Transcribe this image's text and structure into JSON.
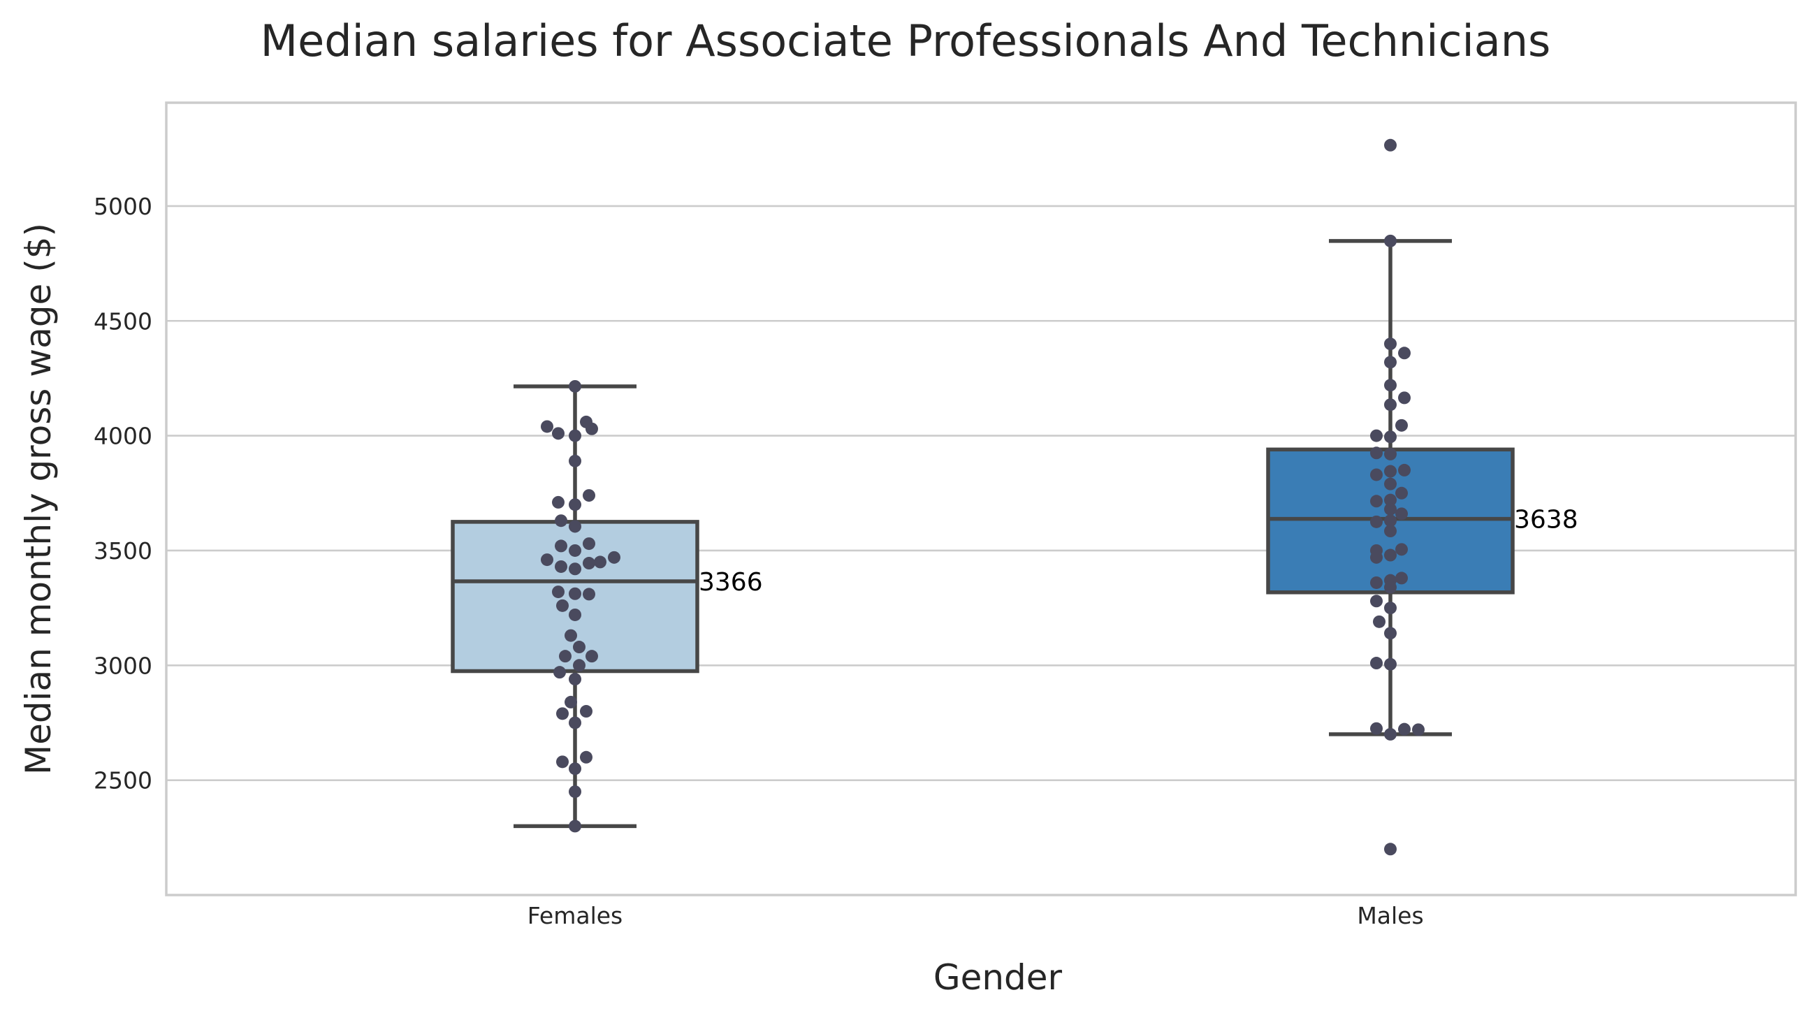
{
  "chart_data": {
    "type": "box",
    "title": "Median salaries for Associate Professionals And Technicians",
    "xlabel": "Gender",
    "ylabel": "Median monthly gross wage ($)",
    "ylim": [
      2000,
      5450
    ],
    "yticks": [
      2500,
      3000,
      3500,
      4000,
      4500,
      5000
    ],
    "grid": "horizontal",
    "colors": {
      "Females": "#b3cde0",
      "Males": "#3a7db5",
      "points": "#4a4a5e",
      "box_edge": "#474747"
    },
    "categories": [
      "Females",
      "Males"
    ],
    "boxes": [
      {
        "name": "Females",
        "whisker_low": 2300,
        "q1": 2975,
        "median": 3366,
        "q3": 3625,
        "whisker_high": 4215,
        "median_label": "3366",
        "outliers": []
      },
      {
        "name": "Males",
        "whisker_low": 2700,
        "q1": 3318,
        "median": 3638,
        "q3": 3940,
        "whisker_high": 4848,
        "median_label": "3638",
        "outliers": [
          5265,
          2200
        ]
      }
    ],
    "points": [
      {
        "category": "Females",
        "values": [
          4215,
          4060,
          4040,
          4030,
          4010,
          4000,
          3890,
          3740,
          3710,
          3700,
          3630,
          3605,
          3530,
          3520,
          3500,
          3470,
          3460,
          3450,
          3445,
          3430,
          3420,
          3320,
          3312,
          3310,
          3260,
          3220,
          3130,
          3080,
          3040,
          3040,
          3000,
          2970,
          2940,
          2840,
          2800,
          2790,
          2750,
          2600,
          2580,
          2550,
          2450,
          2300
        ],
        "offsets": [
          0,
          8,
          -20,
          12,
          -12,
          0,
          0,
          10,
          -12,
          0,
          -10,
          0,
          10,
          -10,
          0,
          28,
          -20,
          18,
          10,
          -10,
          0,
          -12,
          0,
          10,
          -9,
          0,
          -3,
          3,
          -7,
          12,
          3,
          -11,
          0,
          -3,
          8,
          -9,
          0,
          8,
          -9,
          0,
          0,
          0
        ]
      },
      {
        "category": "Males",
        "values": [
          4848,
          4400,
          4360,
          4320,
          4220,
          4165,
          4135,
          4045,
          4000,
          3995,
          3925,
          3920,
          3850,
          3845,
          3830,
          3790,
          3750,
          3720,
          3715,
          3680,
          3660,
          3630,
          3625,
          3585,
          3505,
          3500,
          3480,
          3470,
          3380,
          3370,
          3360,
          3340,
          3280,
          3250,
          3190,
          3140,
          3010,
          3005,
          2725,
          2722,
          2720,
          2700
        ],
        "offsets": [
          0,
          0,
          10,
          0,
          0,
          10,
          0,
          8,
          -10,
          0,
          -10,
          0,
          10,
          0,
          -10,
          0,
          8,
          0,
          -10,
          0,
          8,
          0,
          -10,
          0,
          8,
          -10,
          0,
          -10,
          8,
          0,
          -10,
          0,
          -10,
          0,
          -8,
          0,
          -10,
          0,
          -10,
          10,
          20,
          0
        ]
      }
    ]
  }
}
